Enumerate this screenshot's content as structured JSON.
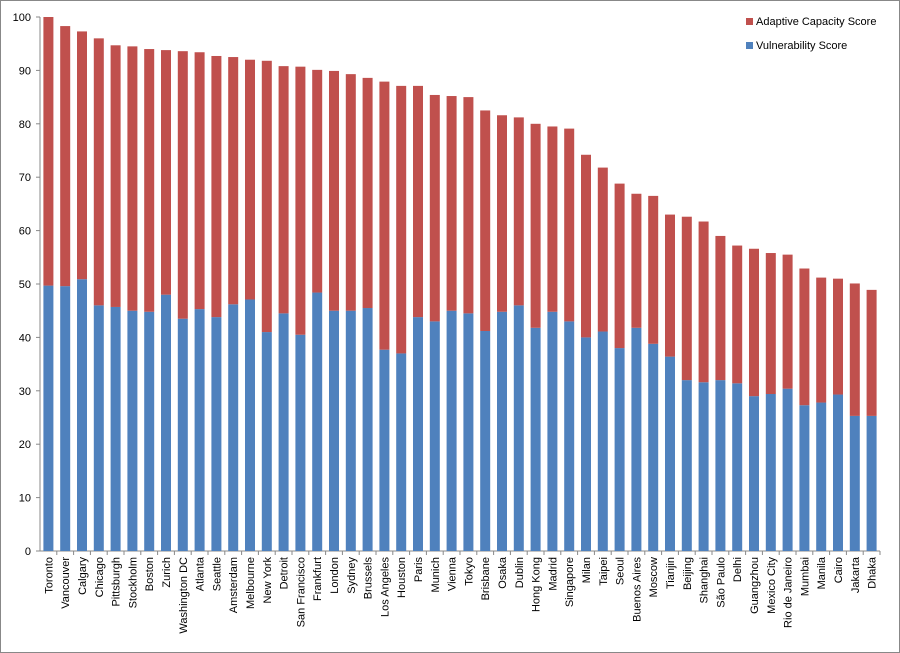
{
  "chart_data": {
    "type": "stacked-bar",
    "categories": [
      "Toronto",
      "Vancouver",
      "Calgary",
      "Chicago",
      "Pittsburgh",
      "Stockholm",
      "Boston",
      "Zurich",
      "Washington DC",
      "Atlanta",
      "Seattle",
      "Amsterdam",
      "Melbourne",
      "New York",
      "Detroit",
      "San Francisco",
      "Frankfurt",
      "London",
      "Sydney",
      "Brussels",
      "Los Angeles",
      "Houston",
      "Paris",
      "Munich",
      "Vienna",
      "Tokyo",
      "Brisbane",
      "Osaka",
      "Dublin",
      "Hong Kong",
      "Madrid",
      "Singapore",
      "Milan",
      "Taipei",
      "Seoul",
      "Buenos Aires",
      "Moscow",
      "Tianjin",
      "Beijing",
      "Shanghai",
      "São Paulo",
      "Delhi",
      "Guangzhou",
      "Mexico City",
      "Rio de Janeiro",
      "Mumbai",
      "Manila",
      "Cairo",
      "Jakarta",
      "Dhaka"
    ],
    "series": [
      {
        "name": "Vulnerability Score",
        "color": "#4f81bd",
        "values": [
          49.7,
          49.6,
          50.9,
          46,
          45.7,
          45,
          44.8,
          48,
          43.5,
          45.3,
          43.8,
          46.2,
          47.1,
          41,
          44.5,
          40.5,
          48.4,
          45,
          45,
          45.5,
          37.7,
          37,
          43.8,
          43,
          45,
          44.5,
          41.2,
          44.8,
          46,
          41.8,
          44.8,
          43,
          40,
          41.1,
          38,
          41.8,
          38.8,
          36.4,
          32,
          31.6,
          32,
          31.4,
          29,
          29.4,
          30.4,
          27.3,
          27.8,
          29.3,
          25.3,
          25.3
        ]
      },
      {
        "name": "Adaptive Capacity Score",
        "color": "#c0504d",
        "values": [
          50.3,
          48.7,
          46.4,
          50,
          49,
          49.5,
          49.2,
          45.8,
          50.1,
          48.1,
          48.9,
          46.3,
          44.9,
          50.8,
          46.3,
          50.2,
          41.7,
          44.9,
          44.3,
          43.1,
          50.2,
          50.1,
          43.3,
          42.4,
          40.2,
          40.5,
          41.3,
          36.8,
          35.2,
          38.2,
          34.7,
          36.1,
          34.2,
          30.7,
          30.8,
          25.1,
          27.7,
          26.6,
          30.6,
          30.1,
          27,
          25.8,
          27.6,
          26.4,
          25.1,
          25.6,
          23.4,
          21.7,
          24.8,
          23.6
        ]
      }
    ],
    "ylim": [
      0,
      100
    ],
    "yticks": [
      0,
      10,
      20,
      30,
      40,
      50,
      60,
      70,
      80,
      90,
      100
    ],
    "grid": false,
    "legend": "top-right"
  }
}
